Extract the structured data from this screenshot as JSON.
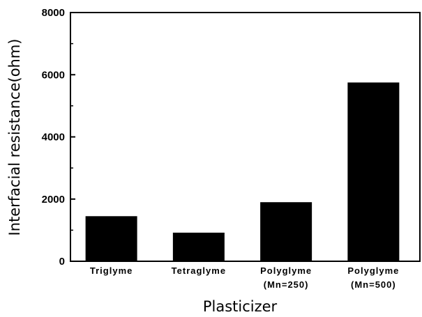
{
  "chart_data": {
    "type": "bar",
    "categories": [
      [
        "Triglyme"
      ],
      [
        "Tetraglyme"
      ],
      [
        "Polyglyme",
        "(Mn=250)"
      ],
      [
        "Polyglyme",
        "(Mn=500)"
      ]
    ],
    "values": [
      1450,
      920,
      1900,
      5750
    ],
    "xlabel": "Plasticizer",
    "ylabel": "Interfacial resistance(ohm)",
    "ylim": [
      0,
      8000
    ],
    "yticks": [
      0,
      2000,
      4000,
      6000,
      8000
    ],
    "bar_color": "#000000",
    "grid": false
  }
}
